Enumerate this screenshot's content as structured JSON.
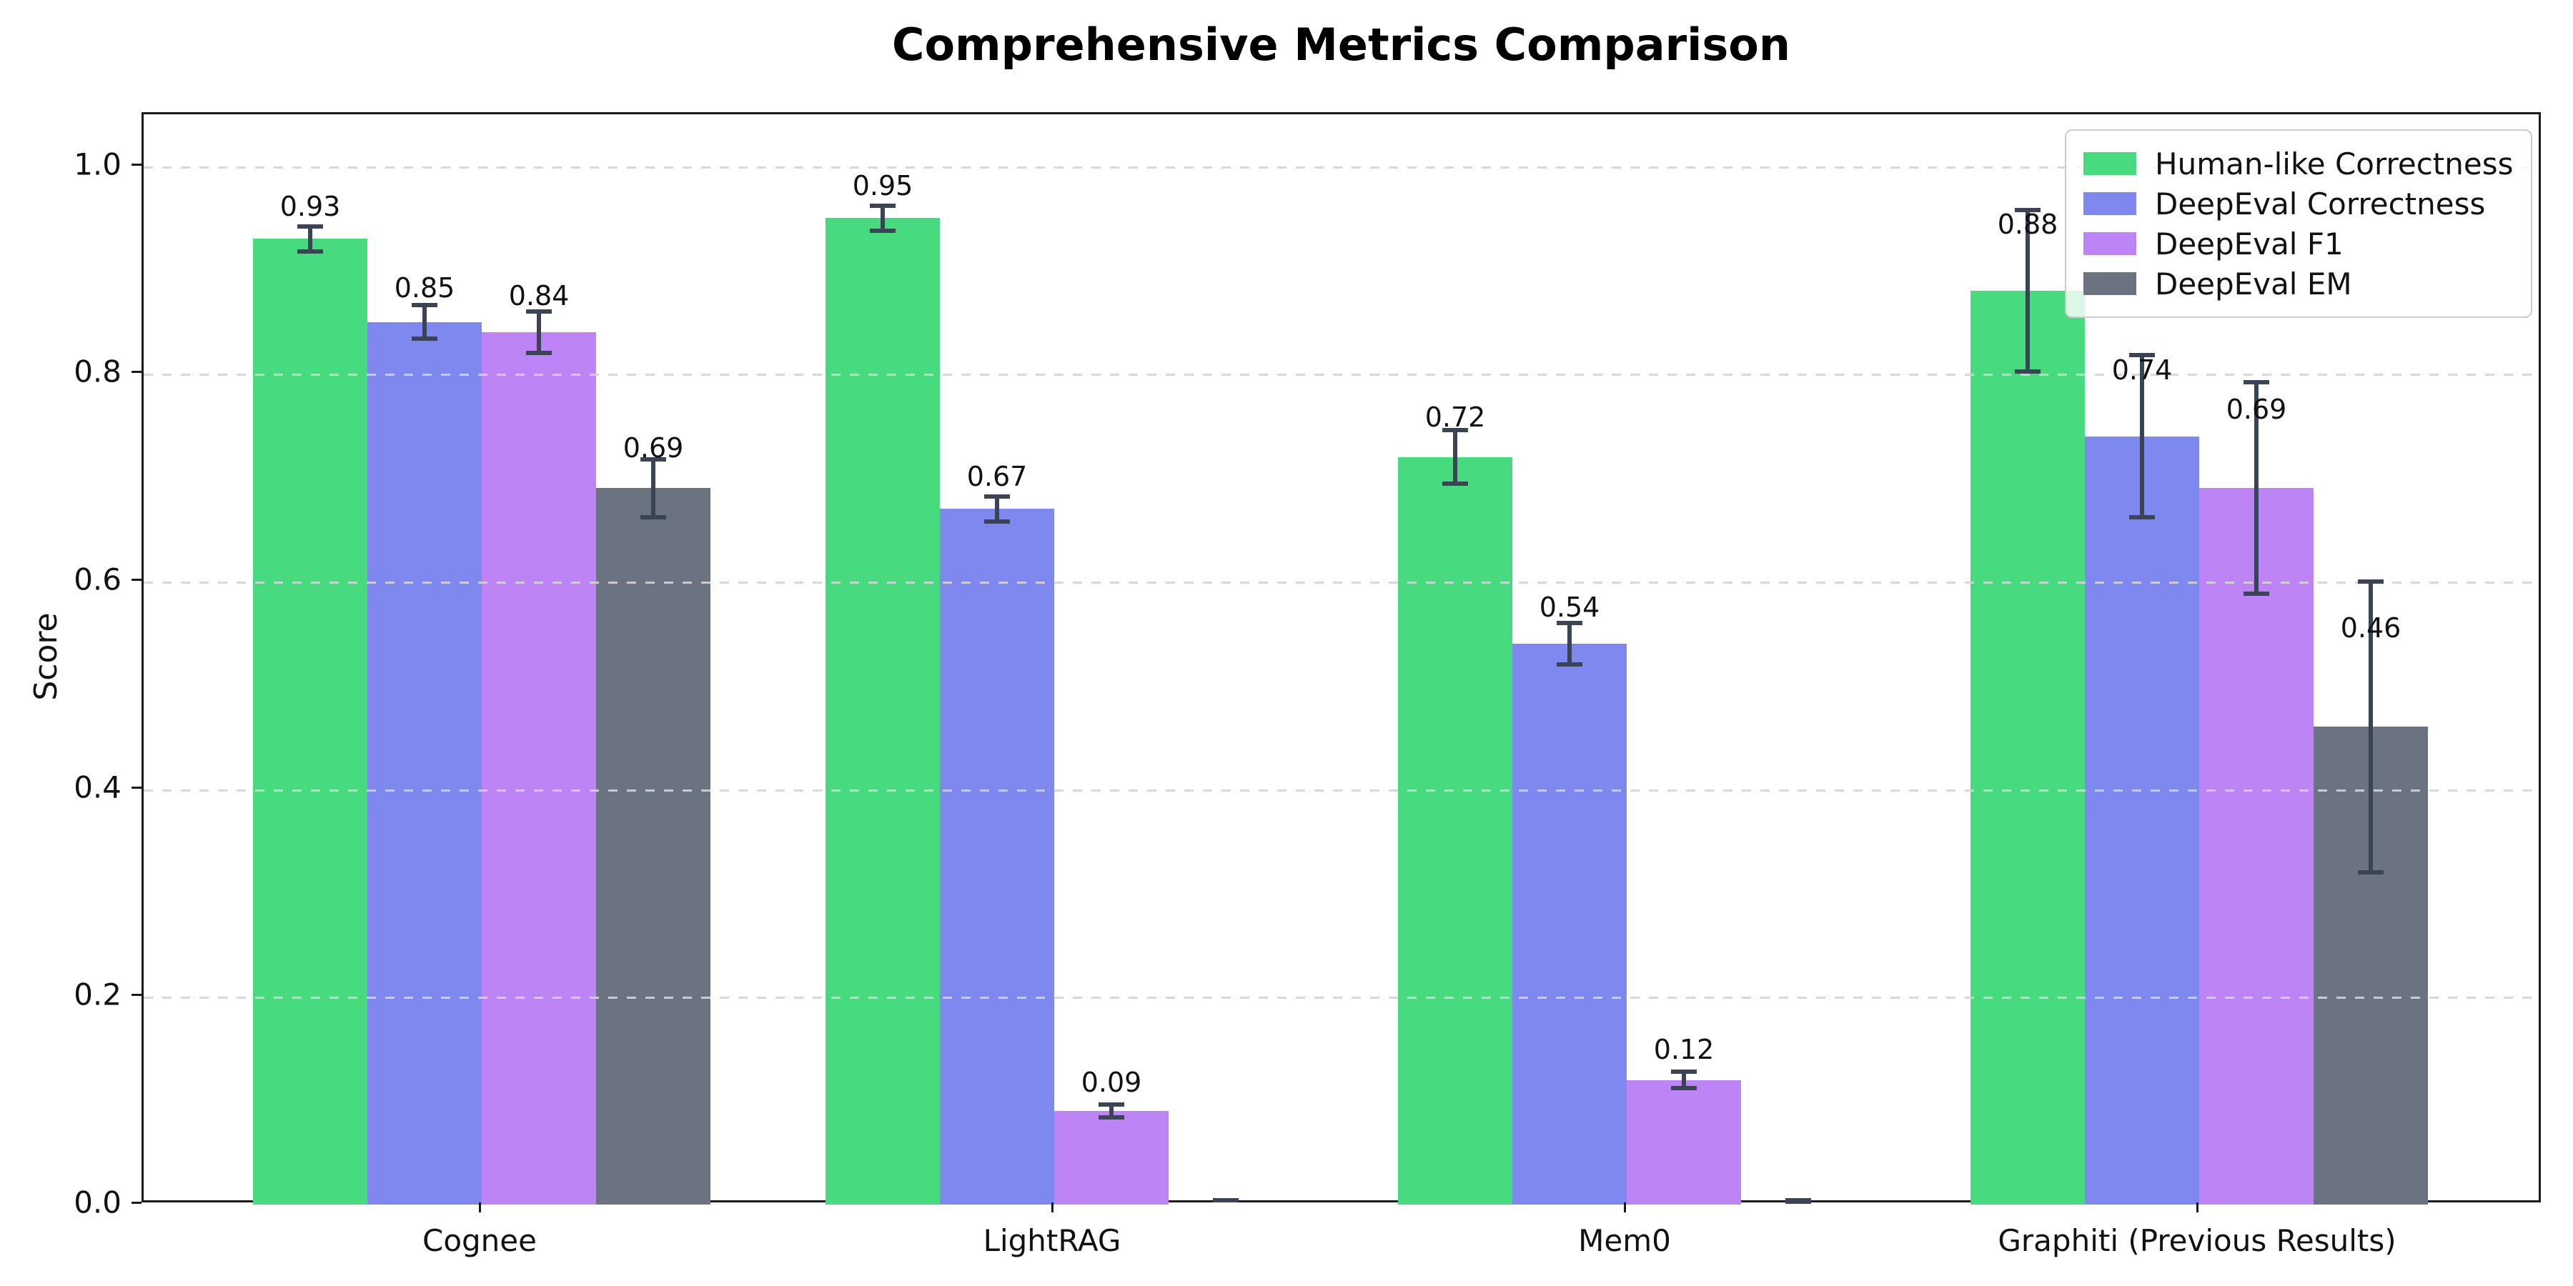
{
  "figure": {
    "background": "#ffffff"
  },
  "chart_data": {
    "type": "bar",
    "title": "Comprehensive Metrics Comparison",
    "xlabel": "",
    "ylabel": "Score",
    "categories": [
      "Cognee",
      "LightRAG",
      "Mem0",
      "Graphiti (Previous Results)"
    ],
    "series": [
      {
        "name": "Human-like Correctness",
        "color": "#47da7f",
        "values": [
          0.93,
          0.95,
          0.72,
          0.88
        ],
        "errors": [
          0.012,
          0.012,
          0.026,
          0.078
        ]
      },
      {
        "name": "DeepEval Correctness",
        "color": "#7e88ef",
        "values": [
          0.85,
          0.67,
          0.54,
          0.74
        ],
        "errors": [
          0.016,
          0.012,
          0.02,
          0.078
        ]
      },
      {
        "name": "DeepEval F1",
        "color": "#bd84f6",
        "values": [
          0.84,
          0.09,
          0.12,
          0.69
        ],
        "errors": [
          0.02,
          0.006,
          0.008,
          0.102
        ]
      },
      {
        "name": "DeepEval EM",
        "color": "#6b7380",
        "values": [
          0.69,
          0.0,
          0.0,
          0.46
        ],
        "errors": [
          0.028,
          0.004,
          0.003,
          0.14
        ]
      }
    ],
    "y_ticks": [
      "0.0",
      "0.2",
      "0.4",
      "0.6",
      "0.8",
      "1.0"
    ],
    "y_tick_values": [
      0.0,
      0.2,
      0.4,
      0.6,
      0.8,
      1.0
    ],
    "ylim": [
      0,
      1.05
    ],
    "grid": {
      "axis": "y",
      "style": "dashed",
      "color": "#d4d4d4"
    },
    "error_bar_color": "#3a4454",
    "bar_label_format": "2-decimals",
    "bar_label_min_value": 0.005,
    "legend_position": "upper right"
  }
}
